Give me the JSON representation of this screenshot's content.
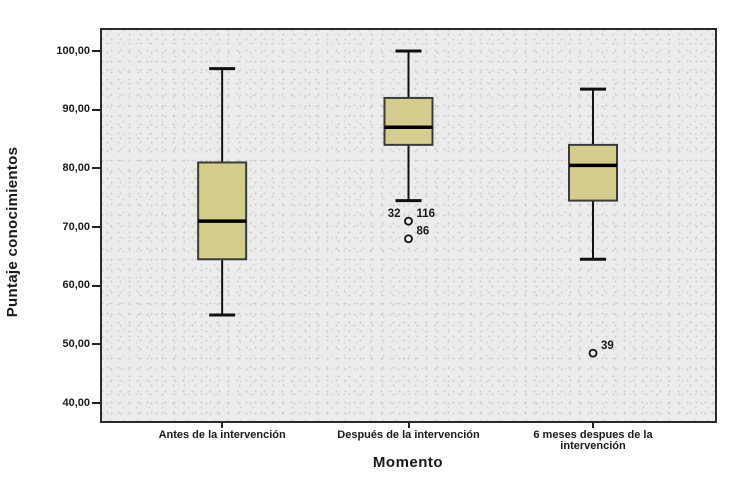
{
  "chart_data": {
    "type": "boxplot",
    "title": "",
    "xlabel": "Momento",
    "ylabel": "Puntaje conocimientos",
    "y_axis": {
      "min": 40,
      "max": 100,
      "step": 10,
      "tick_values": [
        100,
        90,
        80,
        70,
        60,
        50,
        40
      ],
      "tick_labels": [
        "100,00",
        "90,00",
        "80,00",
        "70,00",
        "60,00",
        "50,00",
        "40,00"
      ]
    },
    "grid": false,
    "legend": "none",
    "categories": [
      {
        "label": "Antes de la intervención",
        "lines": [
          "Antes de la intervención"
        ]
      },
      {
        "label": "Después de la intervención",
        "lines": [
          "Después de la intervención"
        ]
      },
      {
        "label": "6 meses despues de la intervención",
        "lines": [
          "6 meses despues de la",
          "intervención"
        ]
      }
    ],
    "series": [
      {
        "category": "Antes de la intervención",
        "whisker_low": 55,
        "q1": 64.5,
        "median": 71,
        "q3": 81,
        "whisker_high": 97,
        "outliers": []
      },
      {
        "category": "Después de la intervención",
        "whisker_low": 74.5,
        "q1": 84,
        "median": 87,
        "q3": 92,
        "whisker_high": 100,
        "outliers": [
          {
            "value": 71,
            "labels": [
              {
                "text": "32",
                "side": "left"
              },
              {
                "text": "116",
                "side": "right"
              }
            ]
          },
          {
            "value": 68,
            "labels": [
              {
                "text": "86",
                "side": "right"
              }
            ]
          }
        ]
      },
      {
        "category": "6 meses despues de la intervención",
        "whisker_low": 64.5,
        "q1": 74.5,
        "median": 80.5,
        "q3": 84,
        "whisker_high": 93.5,
        "outliers": [
          {
            "value": 48.5,
            "labels": [
              {
                "text": "39",
                "side": "right"
              }
            ]
          }
        ]
      }
    ],
    "colors": {
      "box_fill": "#d5cd8e",
      "box_border": "#3b3b3b",
      "median": "#000000",
      "whisker": "#111111",
      "outlier_stroke": "#111111",
      "outlier_fill": "#ececec",
      "text": "#1a1a1a",
      "plot_bg": "#ececec",
      "frame": "#2a2a2a"
    }
  }
}
